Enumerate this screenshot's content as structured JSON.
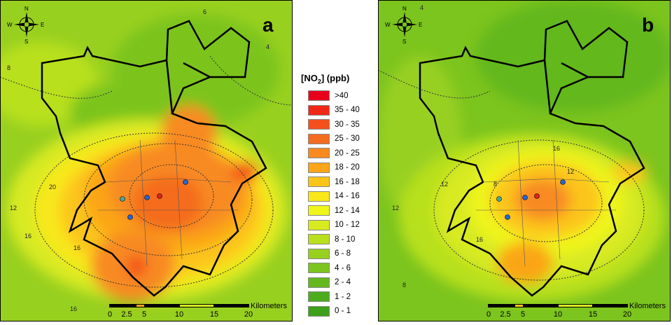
{
  "panels": [
    {
      "label": "a"
    },
    {
      "label": "b"
    }
  ],
  "compass": {
    "n": "N",
    "s": "S",
    "e": "E",
    "w": "W"
  },
  "scale": {
    "unit": "Kilometers",
    "ticks": [
      "0",
      "2.5",
      "5",
      "10",
      "15",
      "20"
    ]
  },
  "legend": {
    "title_main": "[NO",
    "title_sub": "2",
    "title_end": "] (ppb)",
    "items": [
      {
        "label": ">40",
        "color": "#e8001a"
      },
      {
        "label": "35 - 40",
        "color": "#f02818"
      },
      {
        "label": "30 - 35",
        "color": "#f4501e"
      },
      {
        "label": "25 - 30",
        "color": "#f46c1e"
      },
      {
        "label": "20 - 25",
        "color": "#f88a20"
      },
      {
        "label": "18 - 20",
        "color": "#fba518"
      },
      {
        "label": "16 - 18",
        "color": "#fcc51a"
      },
      {
        "label": "14 - 16",
        "color": "#f8e81a"
      },
      {
        "label": "12 - 14",
        "color": "#f0f51a"
      },
      {
        "label": "10 - 12",
        "color": "#d8ea20"
      },
      {
        "label": "8 - 10",
        "color": "#b8e01e"
      },
      {
        "label": "6 - 8",
        "color": "#98d020"
      },
      {
        "label": "4 - 6",
        "color": "#7cc41e"
      },
      {
        "label": "2 - 4",
        "color": "#64b81e"
      },
      {
        "label": "1 - 2",
        "color": "#4cac1e"
      },
      {
        "label": "0 - 1",
        "color": "#3ca01a"
      }
    ]
  },
  "contour_labels_a": [
    "16",
    "20",
    "16",
    "12",
    "8",
    "16",
    "4",
    "6"
  ],
  "contour_labels_b": [
    "12",
    "12",
    "8",
    "16",
    "12",
    "16",
    "8",
    "4"
  ]
}
